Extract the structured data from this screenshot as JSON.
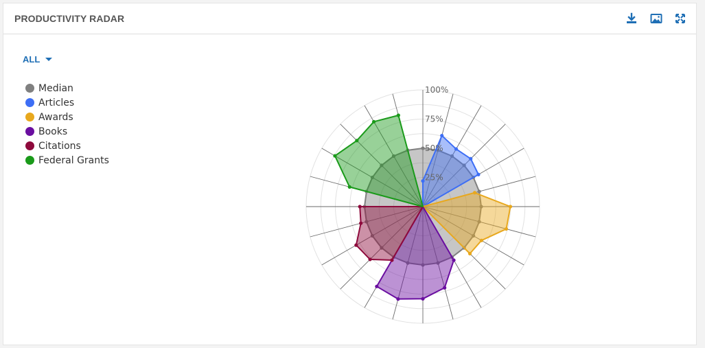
{
  "header": {
    "title": "PRODUCTIVITY RADAR",
    "icons": [
      "download-icon",
      "image-icon",
      "expand-icon"
    ]
  },
  "filter": {
    "label": "ALL"
  },
  "colors": {
    "accent": "#1f6fb5",
    "Median": "#808080",
    "Articles": "#3d6ef5",
    "Awards": "#e8a81e",
    "Books": "#6a0ea0",
    "Citations": "#8e0a3c",
    "Federal Grants": "#1a9a1a"
  },
  "chart_data": {
    "type": "radar",
    "title": "",
    "spokes": 24,
    "scale_labels": [
      "25%",
      "50%",
      "75%",
      "100%"
    ],
    "rmax": 100,
    "legend": [
      "Median",
      "Articles",
      "Awards",
      "Books",
      "Citations",
      "Federal Grants"
    ],
    "series": [
      {
        "name": "Median",
        "values": [
          50,
          50,
          50,
          50,
          50,
          50,
          50,
          50,
          50,
          50,
          50,
          50,
          50,
          50,
          50,
          50,
          50,
          50,
          50,
          50,
          50,
          50,
          50,
          50
        ]
      },
      {
        "name": "Articles",
        "values": [
          22,
          63,
          57,
          58,
          55
        ]
      },
      {
        "name": "Awards",
        "values": [
          46,
          75,
          74,
          58,
          57
        ]
      },
      {
        "name": "Books",
        "values": [
          53,
          72,
          79,
          82,
          79
        ]
      },
      {
        "name": "Citations",
        "values": [
          53,
          64,
          66,
          55,
          54
        ]
      },
      {
        "name": "Federal Grants",
        "values": [
          65,
          87,
          80,
          84,
          81
        ]
      }
    ]
  }
}
